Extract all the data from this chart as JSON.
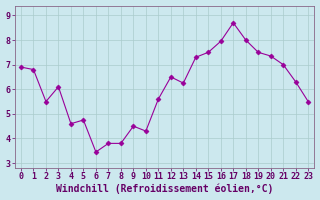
{
  "x": [
    0,
    1,
    2,
    3,
    4,
    5,
    6,
    7,
    8,
    9,
    10,
    11,
    12,
    13,
    14,
    15,
    16,
    17,
    18,
    19,
    20,
    21,
    22,
    23
  ],
  "y": [
    6.9,
    6.8,
    5.5,
    6.1,
    4.6,
    4.75,
    3.45,
    3.8,
    3.8,
    4.5,
    4.3,
    5.6,
    6.5,
    6.25,
    7.3,
    7.5,
    7.95,
    8.7,
    8.0,
    7.5,
    7.35,
    7.0,
    6.3,
    5.5
  ],
  "line_color": "#990099",
  "marker": "D",
  "marker_size": 2.5,
  "bg_color": "#cce8ee",
  "grid_color": "#aacccc",
  "xlabel": "Windchill (Refroidissement éolien,°C)",
  "ylabel_ticks": [
    3,
    4,
    5,
    6,
    7,
    8,
    9
  ],
  "xlim": [
    -0.5,
    23.5
  ],
  "ylim": [
    2.8,
    9.4
  ],
  "tick_color": "#660066",
  "label_color": "#660066",
  "xlabel_fontsize": 7,
  "tick_fontsize": 6
}
